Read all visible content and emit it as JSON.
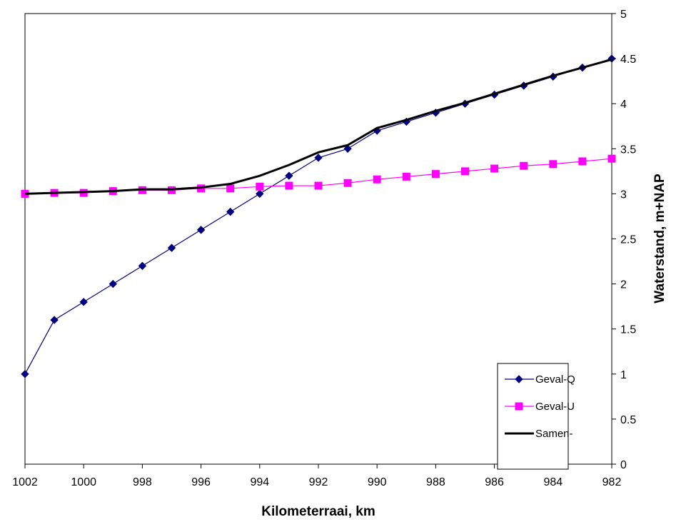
{
  "chart_data": {
    "type": "line",
    "title": "",
    "xlabel": "Kilometerraai, km",
    "ylabel": "Waterstand, m+NAP",
    "x": [
      1002,
      1001,
      1000,
      999,
      998,
      997,
      996,
      995,
      994,
      993,
      992,
      991,
      990,
      989,
      988,
      987,
      986,
      985,
      984,
      983,
      982
    ],
    "xlim": [
      1002,
      982
    ],
    "x_reversed": true,
    "x_ticks": [
      "1002",
      "1000",
      "998",
      "996",
      "994",
      "992",
      "990",
      "988",
      "986",
      "984",
      "982"
    ],
    "ylim": [
      0,
      5
    ],
    "y_axis_side": "right",
    "y_ticks": [
      "0",
      "0.5",
      "1",
      "1.5",
      "2",
      "2.5",
      "3",
      "3.5",
      "4",
      "4.5",
      "5"
    ],
    "grid": false,
    "legend_position": "bottom-right",
    "series": [
      {
        "name": "Geval-Q",
        "color": "#000080",
        "marker": "diamond",
        "values": [
          1.0,
          1.6,
          1.8,
          2.0,
          2.2,
          2.4,
          2.6,
          2.8,
          3.0,
          3.2,
          3.4,
          3.5,
          3.7,
          3.8,
          3.9,
          4.0,
          4.1,
          4.2,
          4.3,
          4.4,
          4.5
        ]
      },
      {
        "name": "Geval-U",
        "color": "#ff00ff",
        "marker": "square",
        "values": [
          3.0,
          3.01,
          3.01,
          3.03,
          3.04,
          3.04,
          3.06,
          3.06,
          3.08,
          3.09,
          3.09,
          3.12,
          3.16,
          3.19,
          3.22,
          3.25,
          3.28,
          3.31,
          3.33,
          3.36,
          3.39
        ]
      },
      {
        "name": "Samen-",
        "color": "#000000",
        "marker": "none",
        "values": [
          3.0,
          3.01,
          3.02,
          3.03,
          3.05,
          3.05,
          3.07,
          3.11,
          3.2,
          3.32,
          3.46,
          3.54,
          3.73,
          3.82,
          3.92,
          4.01,
          4.11,
          4.21,
          4.31,
          4.4,
          4.49
        ]
      }
    ]
  }
}
